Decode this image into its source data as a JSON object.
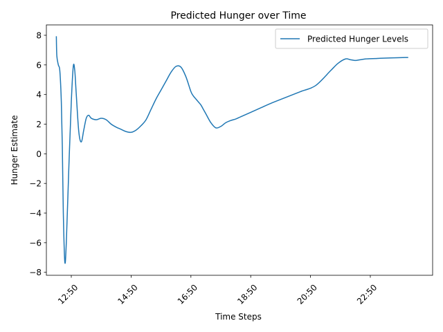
{
  "chart_data": {
    "type": "line",
    "title": "Predicted Hunger over Time",
    "xlabel": "Time Steps",
    "ylabel": "Hunger Estimate",
    "ylim": [
      -8.2,
      8.7
    ],
    "xlim": [
      "12:00",
      "24:55"
    ],
    "yticks": [
      8,
      6,
      4,
      2,
      0,
      -2,
      -4,
      -6,
      -8
    ],
    "ytick_labels": [
      "8",
      "6",
      "4",
      "2",
      "0",
      "−2",
      "−4",
      "−6",
      "−8"
    ],
    "xticks": [
      "12:50",
      "14:50",
      "16:50",
      "18:50",
      "20:50",
      "22:50"
    ],
    "legend": {
      "position": "upper right",
      "entries": [
        "Predicted Hunger Levels"
      ]
    },
    "grid": false,
    "series": [
      {
        "name": "Predicted Hunger Levels",
        "color": "#1f77b4",
        "x": [
          "12:20",
          "12:21",
          "12:24",
          "12:27",
          "12:30",
          "12:32",
          "12:34",
          "12:37",
          "12:40",
          "12:45",
          "12:50",
          "12:54",
          "12:57",
          "13:00",
          "13:05",
          "13:10",
          "13:15",
          "13:20",
          "13:25",
          "13:30",
          "13:40",
          "13:50",
          "14:00",
          "14:10",
          "14:20",
          "14:30",
          "14:40",
          "14:50",
          "15:00",
          "15:10",
          "15:20",
          "15:30",
          "15:40",
          "15:50",
          "16:00",
          "16:10",
          "16:20",
          "16:30",
          "16:40",
          "16:50",
          "16:55",
          "17:00",
          "17:05",
          "17:10",
          "17:15",
          "17:20",
          "17:30",
          "17:40",
          "17:50",
          "18:00",
          "18:10",
          "18:20",
          "18:30",
          "18:50",
          "19:10",
          "19:30",
          "20:00",
          "20:30",
          "21:00",
          "21:30",
          "21:45",
          "22:00",
          "22:10",
          "22:20",
          "22:30",
          "22:40",
          "22:50",
          "23:00",
          "23:10",
          "23:30",
          "24:00",
          "24:05"
        ],
        "values": [
          7.9,
          6.6,
          6.0,
          5.6,
          3.5,
          0.5,
          -4.0,
          -7.3,
          -6.0,
          -1.0,
          3.5,
          5.9,
          5.6,
          4.0,
          1.5,
          0.8,
          1.6,
          2.4,
          2.6,
          2.4,
          2.3,
          2.4,
          2.3,
          2.0,
          1.8,
          1.65,
          1.5,
          1.45,
          1.6,
          1.9,
          2.3,
          3.0,
          3.7,
          4.3,
          4.9,
          5.5,
          5.9,
          5.85,
          5.2,
          4.2,
          3.9,
          3.7,
          3.5,
          3.3,
          3.0,
          2.7,
          2.1,
          1.75,
          1.85,
          2.1,
          2.25,
          2.35,
          2.5,
          2.8,
          3.1,
          3.4,
          3.8,
          4.2,
          4.6,
          5.6,
          6.1,
          6.4,
          6.35,
          6.3,
          6.35,
          6.4,
          6.42,
          6.43,
          6.45,
          6.47,
          6.5,
          6.5
        ]
      }
    ]
  }
}
